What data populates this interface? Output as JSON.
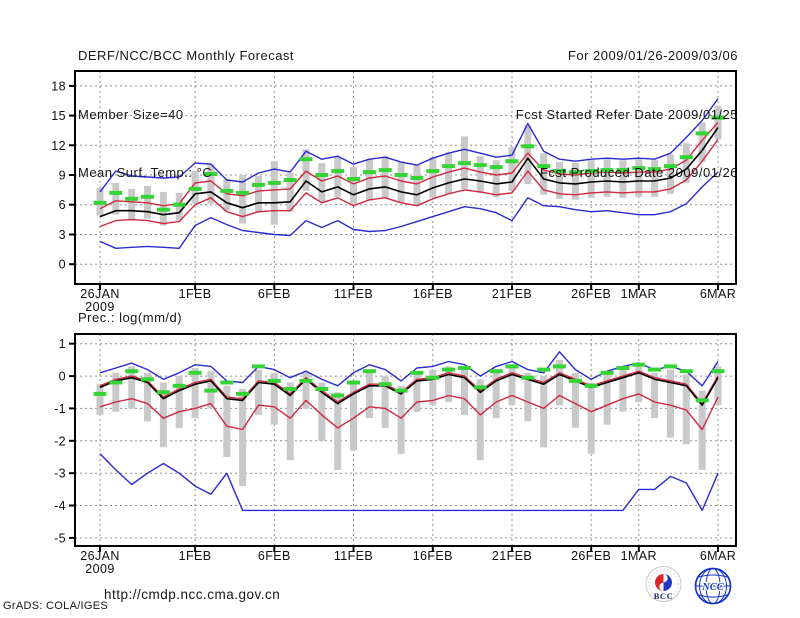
{
  "header": {
    "title": "DERF/NCC/BCC Monthly Forecast",
    "member_size": "Member Size=40",
    "for_range": "For 2009/01/26-2009/03/06",
    "fcst_started": "Fcst Started Refer Date 2009/01/25",
    "fcst_produced": "Fcst Produced Date 2009/01/26"
  },
  "footer": {
    "url": "http://cmdp.ncc.cma.gov.cn",
    "grads_credit": "GrADS: COLA/IGES",
    "logos": [
      {
        "label": "BCC"
      },
      {
        "label": "NCC"
      }
    ]
  },
  "chart_data": [
    {
      "type": "line",
      "title": "Mean Surf. Temp.: °C",
      "n_days": 40,
      "x_tick_labels": [
        "26JAN",
        "1FEB",
        "6FEB",
        "11FEB",
        "16FEB",
        "21FEB",
        "26FEB",
        "1MAR",
        "6MAR"
      ],
      "x_tick_days": [
        0,
        6,
        11,
        16,
        21,
        26,
        31,
        34,
        39
      ],
      "year_label": "2009",
      "ylim": [
        -2,
        19.5
      ],
      "yticks": [
        0,
        3,
        6,
        9,
        12,
        15,
        18
      ],
      "grid": "dotted",
      "legend": "none",
      "series": [
        {
          "name": "ensemble-max",
          "color": "#2a2ad2",
          "values": [
            7.3,
            9.4,
            8.9,
            8.8,
            8.7,
            8.8,
            10.2,
            10.1,
            8.5,
            8.3,
            9.2,
            9.6,
            9.3,
            11.4,
            10.6,
            10.9,
            10.1,
            10.6,
            10.8,
            10.3,
            10.0,
            10.7,
            11.2,
            11.6,
            11.2,
            10.8,
            11.0,
            14.2,
            11.4,
            10.6,
            10.4,
            10.6,
            10.7,
            10.6,
            10.7,
            10.6,
            11.2,
            12.8,
            14.5,
            16.7
          ]
        },
        {
          "name": "mean-plus-std",
          "color": "#d02840",
          "values": [
            5.6,
            6.4,
            6.3,
            6.2,
            5.9,
            6.1,
            8.2,
            8.4,
            7.1,
            6.9,
            7.4,
            7.5,
            7.6,
            9.4,
            8.4,
            8.9,
            8.1,
            8.7,
            8.9,
            8.4,
            8.1,
            8.8,
            9.3,
            9.7,
            9.3,
            9.0,
            9.2,
            11.2,
            9.5,
            9.1,
            9.0,
            9.2,
            9.3,
            9.2,
            9.3,
            9.3,
            9.6,
            10.5,
            12.5,
            14.3
          ]
        },
        {
          "name": "ensemble-mean",
          "color": "#000000",
          "values": [
            4.8,
            5.4,
            5.4,
            5.3,
            5.0,
            5.2,
            7.1,
            7.3,
            6.2,
            5.7,
            6.2,
            6.2,
            6.3,
            8.4,
            7.3,
            7.8,
            7.0,
            7.6,
            7.8,
            7.3,
            7.0,
            7.7,
            8.2,
            8.6,
            8.4,
            8.1,
            8.3,
            10.7,
            8.6,
            8.2,
            8.1,
            8.3,
            8.4,
            8.3,
            8.4,
            8.4,
            8.7,
            9.6,
            11.5,
            13.8
          ]
        },
        {
          "name": "mean-minus-std",
          "color": "#d02840",
          "values": [
            3.8,
            4.4,
            4.5,
            4.4,
            4.1,
            4.3,
            6.0,
            6.7,
            5.3,
            4.8,
            5.3,
            5.4,
            5.4,
            7.2,
            6.2,
            6.7,
            5.9,
            6.5,
            6.7,
            6.2,
            5.9,
            6.6,
            7.1,
            7.5,
            7.3,
            7.0,
            7.2,
            9.4,
            7.5,
            7.1,
            7.0,
            7.2,
            7.3,
            7.2,
            7.3,
            7.3,
            7.6,
            8.5,
            10.4,
            12.6
          ]
        },
        {
          "name": "ensemble-min",
          "color": "#2a2ad2",
          "values": [
            2.3,
            1.6,
            1.7,
            1.8,
            1.7,
            1.6,
            3.9,
            4.7,
            4.0,
            3.4,
            3.2,
            3.0,
            2.9,
            4.4,
            3.7,
            4.4,
            3.5,
            3.3,
            3.4,
            3.8,
            4.3,
            4.8,
            5.3,
            5.8,
            5.6,
            5.2,
            4.4,
            6.7,
            5.9,
            5.8,
            5.5,
            5.3,
            5.4,
            5.2,
            5.0,
            5.0,
            5.3,
            6.1,
            7.8,
            9.3
          ]
        }
      ],
      "markers": {
        "name": "daily-median-dash",
        "color": "#35d435",
        "values": [
          6.2,
          7.2,
          6.6,
          6.8,
          5.5,
          6.0,
          7.6,
          9.1,
          7.4,
          7.2,
          8.0,
          8.2,
          8.5,
          10.6,
          9.0,
          9.4,
          8.6,
          9.3,
          9.5,
          9.0,
          8.7,
          9.4,
          9.9,
          10.2,
          10.0,
          9.8,
          10.4,
          11.9,
          9.9,
          9.4,
          9.3,
          9.4,
          9.5,
          9.5,
          9.7,
          9.6,
          9.9,
          10.8,
          13.2,
          14.8
        ]
      },
      "bars": {
        "name": "ensemble-spread",
        "color": "#c9c9c9",
        "low": [
          4.9,
          5.0,
          4.5,
          4.6,
          3.9,
          4.4,
          6.1,
          6.1,
          5.4,
          4.1,
          5.2,
          4.0,
          5.3,
          7.4,
          6.3,
          6.8,
          6.0,
          6.4,
          6.7,
          6.2,
          5.9,
          6.7,
          7.1,
          7.6,
          7.2,
          6.8,
          7.4,
          8.1,
          7.0,
          6.6,
          6.5,
          6.7,
          6.8,
          6.7,
          6.8,
          6.8,
          7.1,
          8.2,
          10.3,
          12.6
        ],
        "high": [
          7.7,
          8.2,
          7.6,
          7.9,
          7.3,
          7.2,
          9.4,
          10.1,
          8.6,
          9.0,
          8.9,
          10.4,
          9.2,
          11.6,
          10.2,
          10.8,
          9.8,
          10.6,
          10.9,
          10.3,
          10.0,
          10.8,
          11.3,
          12.9,
          10.9,
          10.5,
          11.8,
          14.0,
          11.2,
          10.3,
          10.2,
          10.5,
          10.6,
          10.5,
          10.6,
          10.5,
          11.1,
          12.2,
          14.3,
          16.0
        ]
      }
    },
    {
      "type": "line",
      "title": "Prec.: log(mm/d)",
      "n_days": 40,
      "x_tick_labels": [
        "26JAN",
        "1FEB",
        "6FEB",
        "11FEB",
        "16FEB",
        "21FEB",
        "26FEB",
        "1MAR",
        "6MAR"
      ],
      "x_tick_days": [
        0,
        6,
        11,
        16,
        21,
        26,
        31,
        34,
        39
      ],
      "year_label": "2009",
      "ylim": [
        -5.25,
        1.3
      ],
      "yticks": [
        1,
        0,
        -1,
        -2,
        -3,
        -4,
        -5
      ],
      "grid": "dotted",
      "legend": "none",
      "series": [
        {
          "name": "ensemble-max",
          "color": "#2a2ad2",
          "values": [
            0.1,
            0.25,
            0.4,
            0.2,
            -0.1,
            0.1,
            0.35,
            0.3,
            -0.15,
            -0.2,
            0.3,
            0.2,
            -0.05,
            0.15,
            -0.1,
            -0.3,
            0.1,
            0.35,
            0.2,
            -0.15,
            0.25,
            0.3,
            0.45,
            0.35,
            0.0,
            0.3,
            0.45,
            0.2,
            0.1,
            0.75,
            0.2,
            -0.1,
            0.15,
            0.3,
            0.4,
            0.2,
            0.3,
            0.15,
            -0.3,
            0.45
          ]
        },
        {
          "name": "mean-plus-std",
          "color": "#d02840",
          "values": [
            -0.3,
            -0.1,
            0.0,
            -0.15,
            -0.65,
            -0.4,
            -0.2,
            -0.1,
            -0.65,
            -0.7,
            -0.15,
            -0.2,
            -0.55,
            -0.05,
            -0.45,
            -0.8,
            -0.5,
            -0.25,
            -0.25,
            -0.5,
            -0.1,
            -0.05,
            0.1,
            0.0,
            -0.45,
            -0.1,
            0.1,
            -0.05,
            -0.2,
            0.1,
            -0.1,
            -0.3,
            -0.15,
            0.0,
            0.15,
            -0.05,
            -0.15,
            -0.25,
            -0.85,
            0.0
          ]
        },
        {
          "name": "ensemble-mean",
          "color": "#000000",
          "values": [
            -0.35,
            -0.15,
            -0.05,
            -0.2,
            -0.7,
            -0.45,
            -0.25,
            -0.15,
            -0.7,
            -0.75,
            -0.2,
            -0.25,
            -0.6,
            -0.1,
            -0.5,
            -0.85,
            -0.55,
            -0.3,
            -0.3,
            -0.55,
            -0.15,
            -0.1,
            0.05,
            -0.05,
            -0.5,
            -0.15,
            0.05,
            -0.1,
            -0.25,
            0.05,
            -0.15,
            -0.35,
            -0.2,
            -0.05,
            0.1,
            -0.1,
            -0.2,
            -0.3,
            -0.9,
            -0.05
          ]
        },
        {
          "name": "mean-minus-std",
          "color": "#d02840",
          "values": [
            -0.95,
            -0.8,
            -0.7,
            -0.85,
            -1.3,
            -1.1,
            -1.0,
            -0.85,
            -1.55,
            -1.65,
            -0.9,
            -0.95,
            -1.3,
            -0.75,
            -1.2,
            -1.6,
            -1.3,
            -0.95,
            -1.0,
            -1.3,
            -0.8,
            -0.75,
            -0.6,
            -0.7,
            -1.2,
            -0.8,
            -0.6,
            -0.8,
            -1.0,
            -0.6,
            -0.85,
            -1.1,
            -0.9,
            -0.7,
            -0.55,
            -0.8,
            -0.9,
            -1.05,
            -1.65,
            -0.65
          ]
        },
        {
          "name": "ensemble-min",
          "color": "#2a2ad2",
          "values": [
            -2.4,
            -2.9,
            -3.35,
            -3.0,
            -2.7,
            -3.0,
            -3.4,
            -3.65,
            -3.0,
            -4.15,
            -4.15,
            -4.15,
            -4.15,
            -4.15,
            -4.15,
            -4.15,
            -4.15,
            -4.15,
            -4.15,
            -4.15,
            -4.15,
            -4.15,
            -4.15,
            -4.15,
            -4.15,
            -4.15,
            -4.15,
            -4.15,
            -4.15,
            -4.15,
            -4.15,
            -4.15,
            -4.15,
            -4.15,
            -3.5,
            -3.5,
            -3.1,
            -3.3,
            -4.15,
            -3.0
          ]
        }
      ],
      "markers": {
        "name": "daily-median-dash",
        "color": "#35d435",
        "values": [
          -0.55,
          -0.2,
          0.15,
          -0.1,
          -0.5,
          -0.3,
          0.1,
          -0.45,
          -0.2,
          -0.55,
          0.3,
          -0.15,
          -0.4,
          -0.15,
          -0.4,
          -0.6,
          -0.2,
          0.15,
          -0.25,
          -0.45,
          0.1,
          -0.05,
          0.2,
          0.25,
          -0.35,
          0.15,
          0.3,
          -0.05,
          0.2,
          0.3,
          -0.15,
          -0.3,
          0.1,
          0.25,
          0.35,
          0.2,
          0.3,
          0.15,
          -0.75,
          0.15
        ]
      },
      "bars": {
        "name": "ensemble-spread",
        "color": "#c9c9c9",
        "low": [
          -1.2,
          -1.1,
          -1.0,
          -1.4,
          -2.2,
          -1.6,
          -1.3,
          -1.0,
          -2.5,
          -3.4,
          -1.2,
          -1.5,
          -2.6,
          -1.0,
          -2.0,
          -2.9,
          -2.3,
          -1.3,
          -1.6,
          -2.4,
          -1.1,
          -0.9,
          -0.8,
          -1.2,
          -2.6,
          -1.3,
          -0.9,
          -1.4,
          -2.2,
          -0.9,
          -1.6,
          -2.4,
          -1.5,
          -1.1,
          -0.8,
          -1.3,
          -1.9,
          -2.1,
          -2.9,
          -0.9
        ],
        "high": [
          -0.25,
          0.1,
          0.3,
          0.1,
          -0.2,
          0.0,
          0.25,
          0.15,
          -0.3,
          -0.4,
          0.2,
          0.1,
          -0.2,
          0.1,
          -0.2,
          -0.5,
          -0.2,
          0.2,
          0.0,
          -0.3,
          0.15,
          0.2,
          0.3,
          0.25,
          -0.1,
          0.2,
          0.35,
          0.1,
          0.0,
          0.5,
          0.1,
          -0.2,
          0.05,
          0.2,
          0.3,
          0.1,
          0.2,
          0.05,
          -0.45,
          0.3
        ]
      }
    }
  ]
}
